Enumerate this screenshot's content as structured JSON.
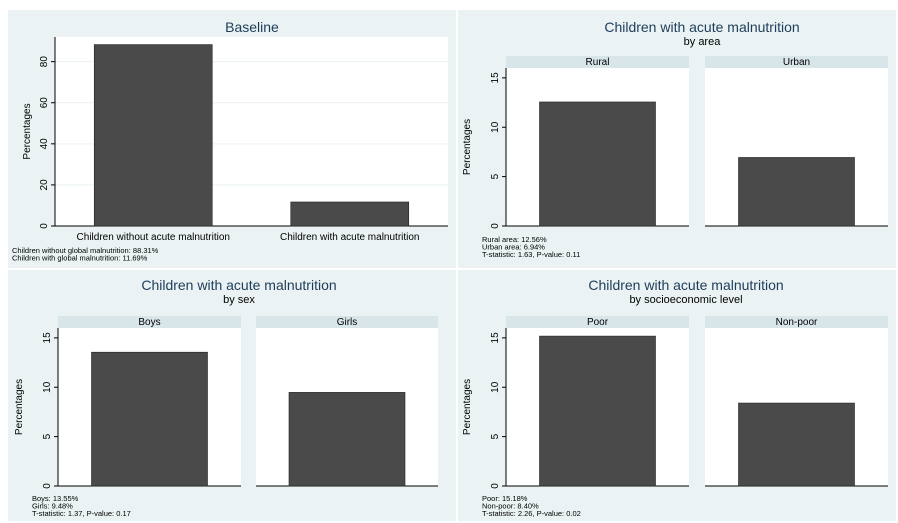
{
  "chart_data": [
    {
      "type": "bar",
      "title": "Baseline",
      "subtitle": "",
      "ylabel": "Percentages",
      "ylim": [
        0,
        92
      ],
      "yticks": [
        0,
        20,
        40,
        60,
        80
      ],
      "grid": true,
      "categories": [
        "Children without acute malnutrition",
        "Children with acute malnutrition"
      ],
      "values": [
        88.31,
        11.69
      ],
      "notes": [
        "Children without global malnutrition: 88.31%",
        "Children with global malnutrition: 11.69%"
      ]
    },
    {
      "type": "bar",
      "title": "Children with acute malnutrition",
      "subtitle": "by area",
      "ylabel": "Percentages",
      "ylim": [
        0,
        16
      ],
      "yticks": [
        0,
        5,
        10,
        15
      ],
      "grid": false,
      "facets": [
        "Rural",
        "Urban"
      ],
      "values": [
        12.56,
        6.94
      ],
      "notes": [
        "Rural area: 12.56%",
        "Urban area: 6.94%",
        "T-statistic: 1.63, P-value: 0.11"
      ]
    },
    {
      "type": "bar",
      "title": "Children with acute malnutrition",
      "subtitle": "by sex",
      "ylabel": "Percentages",
      "ylim": [
        0,
        16
      ],
      "yticks": [
        0,
        5,
        10,
        15
      ],
      "grid": false,
      "facets": [
        "Boys",
        "Girls"
      ],
      "values": [
        13.55,
        9.48
      ],
      "notes": [
        "Boys: 13.55%",
        "Girls: 9.48%",
        "T-statistic: 1.37, P-value: 0.17"
      ]
    },
    {
      "type": "bar",
      "title": "Children with acute malnutrition",
      "subtitle": "by socioeconomic level",
      "ylabel": "Percentages",
      "ylim": [
        0,
        16
      ],
      "yticks": [
        0,
        5,
        10,
        15
      ],
      "grid": false,
      "facets": [
        "Poor",
        "Non-poor"
      ],
      "values": [
        15.18,
        8.4
      ],
      "notes": [
        "Poor: 15.18%",
        "Non-poor: 8.40%",
        "T-statistic: 2.26, P-value: 0.02"
      ]
    }
  ],
  "colors": {
    "panel_bg": "#eaf2f3",
    "plot_bg": "#ffffff",
    "bar": "#4a4a4a",
    "title": "#1e3d5a",
    "facet_strip": "#d8e6ea",
    "grid": "#eaf2f3"
  }
}
